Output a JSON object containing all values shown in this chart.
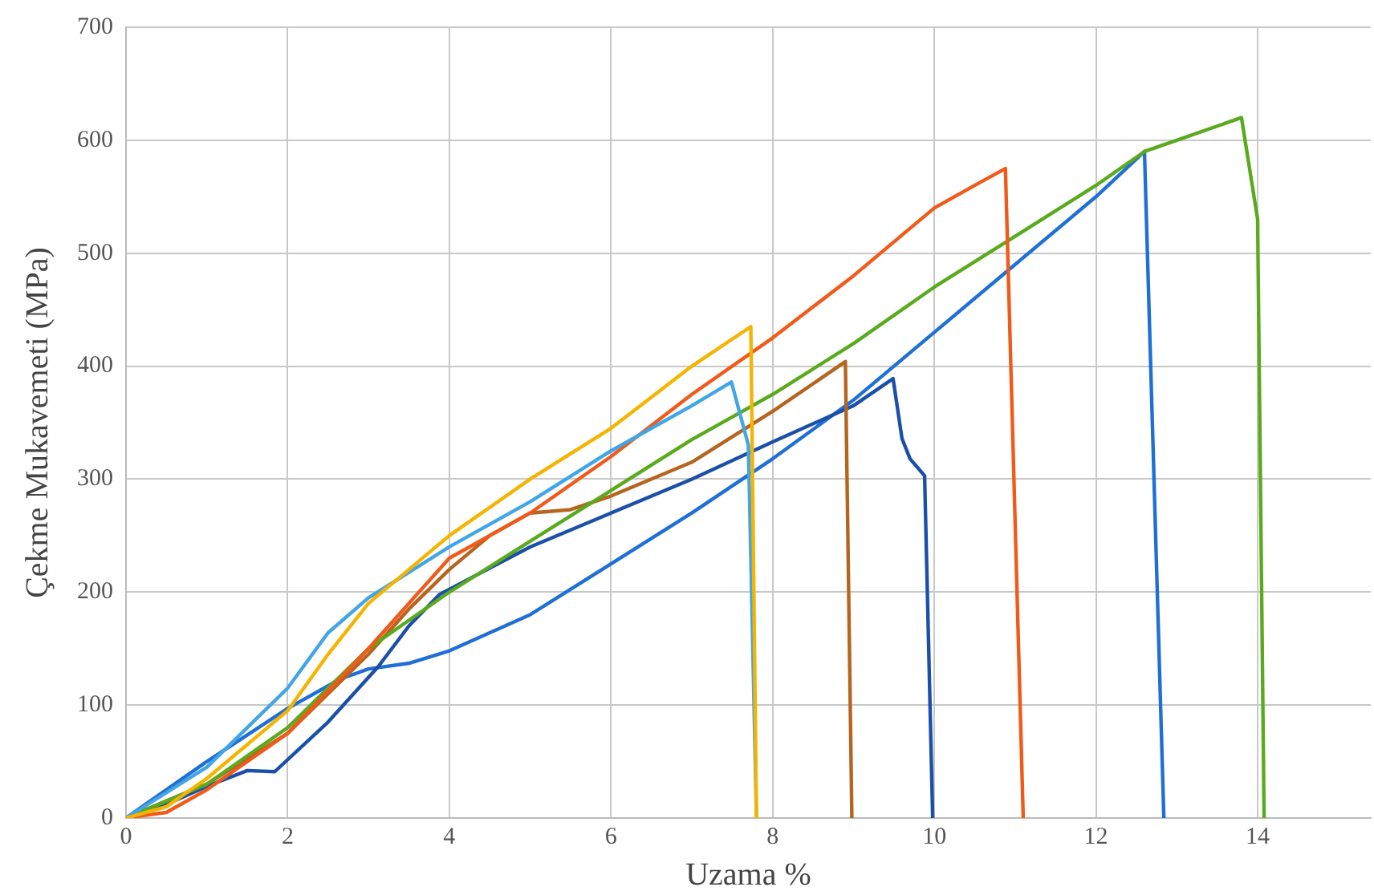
{
  "chart_data": {
    "type": "line",
    "xlabel": "Uzama %",
    "ylabel": "Çekme Mukavemeti (MPa)",
    "xlim": [
      0,
      15.4
    ],
    "xticks": [
      0,
      2,
      4,
      6,
      8,
      10,
      12,
      14
    ],
    "ylim": [
      0,
      700
    ],
    "yticks": [
      0,
      100,
      200,
      300,
      400,
      500,
      600,
      700
    ],
    "grid": true,
    "legend": false,
    "marker": "none",
    "line_style": "solid",
    "series": [
      {
        "color": "#f5b400",
        "x": [
          0,
          0.5,
          1,
          2,
          2.5,
          3,
          3.5,
          4,
          5,
          6,
          7,
          7.73,
          7.8
        ],
        "values": [
          0,
          10,
          35,
          95,
          145,
          190,
          220,
          250,
          300,
          345,
          400,
          435,
          0
        ]
      },
      {
        "color": "#41a5e6",
        "x": [
          0,
          1,
          2,
          2.5,
          3,
          4,
          5,
          6,
          7,
          7.49,
          7.7,
          7.8
        ],
        "values": [
          0,
          45,
          115,
          164,
          195,
          240,
          280,
          325,
          365,
          386,
          330,
          0
        ]
      },
      {
        "color": "#f05a1a",
        "x": [
          0,
          0.5,
          1,
          2,
          3,
          3.5,
          4,
          5,
          6,
          7,
          8,
          9,
          10,
          10.5,
          10.88,
          11.1
        ],
        "values": [
          0,
          5,
          25,
          75,
          150,
          190,
          230,
          270,
          320,
          375,
          425,
          480,
          540,
          560,
          575,
          0
        ]
      },
      {
        "color": "#5aaa1e",
        "x": [
          0,
          1,
          2,
          3,
          4,
          5,
          6,
          7,
          8,
          9,
          10,
          11,
          12,
          12.6,
          13,
          13.8,
          14,
          14.08
        ],
        "values": [
          0,
          30,
          80,
          150,
          200,
          245,
          290,
          335,
          375,
          420,
          470,
          515,
          560,
          590,
          600,
          620,
          530,
          0
        ]
      },
      {
        "color": "#b5651d",
        "x": [
          0,
          1,
          2,
          3,
          3.5,
          4,
          4.5,
          5,
          5.5,
          6,
          7,
          8,
          8.9,
          8.98
        ],
        "values": [
          0,
          30,
          75,
          145,
          185,
          220,
          250,
          270,
          273,
          285,
          315,
          360,
          404,
          0
        ]
      },
      {
        "color": "#1b4fa8",
        "x": [
          0,
          0.5,
          1,
          1.5,
          1.84,
          2.5,
          3.12,
          3.5,
          3.88,
          5,
          6,
          7,
          8,
          9,
          9.49,
          9.6,
          9.7,
          9.88,
          9.98
        ],
        "values": [
          0,
          12,
          28,
          42,
          41,
          85,
          134,
          170,
          198,
          240,
          270,
          300,
          333,
          365,
          389,
          336,
          318,
          303,
          0
        ]
      },
      {
        "color": "#1f6fd6",
        "x": [
          0,
          1,
          2,
          2.65,
          3,
          3.5,
          4,
          5,
          6,
          7,
          8,
          9,
          10,
          11,
          12,
          12.6,
          12.84
        ],
        "values": [
          0,
          50,
          97,
          123,
          132,
          137,
          148,
          180,
          225,
          270,
          318,
          370,
          430,
          490,
          550,
          590,
          0
        ]
      }
    ]
  }
}
